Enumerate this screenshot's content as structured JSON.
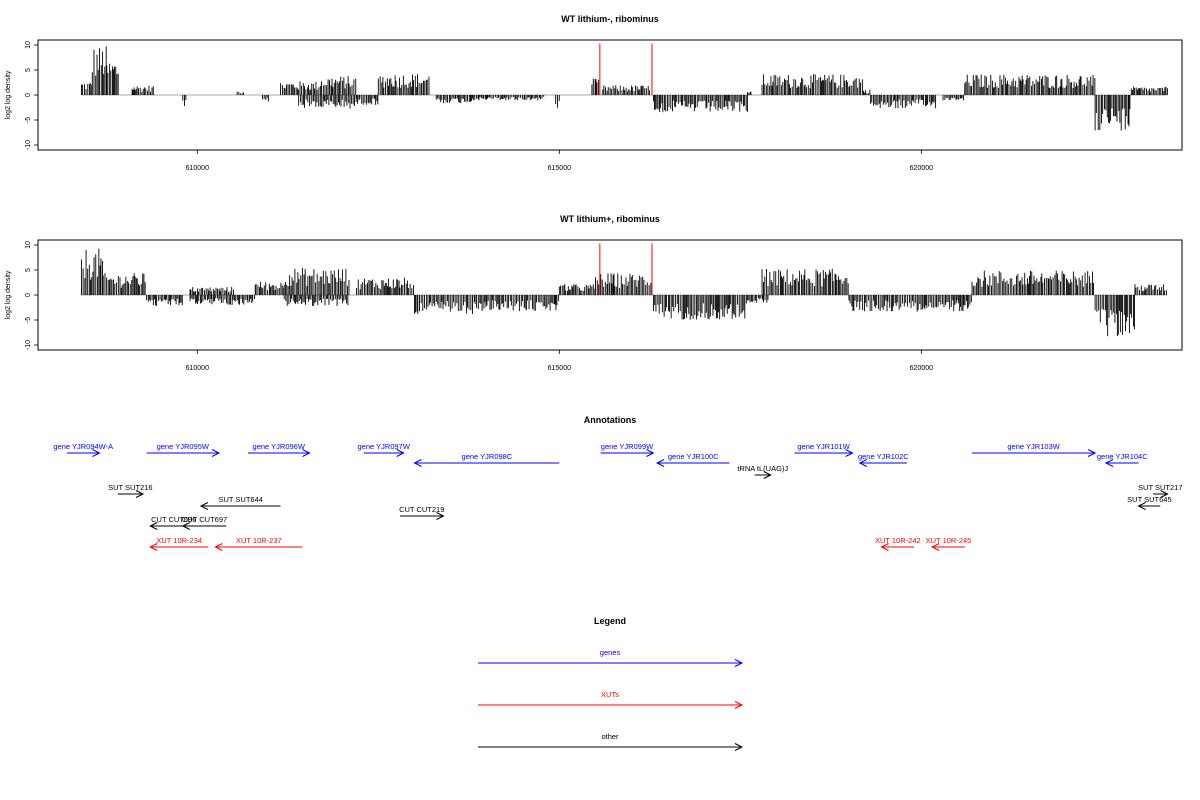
{
  "chart_data": [
    {
      "type": "bar",
      "title": "WT lithium-, ribominus",
      "ylabel": "log2 log density",
      "xlabel": "",
      "xlim": [
        607800,
        623600
      ],
      "ylim": [
        -11,
        11
      ],
      "xticks": [
        610000,
        615000,
        620000
      ],
      "yticks": [
        -10,
        -5,
        0,
        5,
        10
      ],
      "grid": false,
      "markers": [
        {
          "x": 615560,
          "value": 10.3,
          "color": "#ff0000"
        },
        {
          "x": 616280,
          "value": 10.3,
          "color": "#ff0000"
        }
      ],
      "segments": [
        {
          "x_start": 608400,
          "x_end": 608550,
          "value": 2.5
        },
        {
          "x_start": 608550,
          "x_end": 608750,
          "value": 9.0
        },
        {
          "x_start": 608750,
          "x_end": 608930,
          "value": 6.5
        },
        {
          "x_start": 609100,
          "x_end": 609400,
          "value": 1.8
        },
        {
          "x_start": 609800,
          "x_end": 609850,
          "value": -2.0
        },
        {
          "x_start": 610550,
          "x_end": 610650,
          "value": 0.8
        },
        {
          "x_start": 610900,
          "x_end": 611000,
          "value": -1.5
        },
        {
          "x_start": 611150,
          "x_end": 611700,
          "value": 2.5
        },
        {
          "x_start": 611700,
          "x_end": 612200,
          "value": 3.5
        },
        {
          "x_start": 611400,
          "x_end": 612200,
          "value": -2.5
        },
        {
          "x_start": 612200,
          "x_end": 612500,
          "value": -1.8
        },
        {
          "x_start": 612500,
          "x_end": 613200,
          "value": 4.0
        },
        {
          "x_start": 613300,
          "x_end": 613800,
          "value": -1.5
        },
        {
          "x_start": 613800,
          "x_end": 614800,
          "value": -1.0
        },
        {
          "x_start": 614950,
          "x_end": 615000,
          "value": -2.5
        },
        {
          "x_start": 615450,
          "x_end": 615550,
          "value": 3.0
        },
        {
          "x_start": 615600,
          "x_end": 616250,
          "value": 1.8
        },
        {
          "x_start": 616300,
          "x_end": 617600,
          "value": -3.2
        },
        {
          "x_start": 617600,
          "x_end": 617650,
          "value": 0.8
        },
        {
          "x_start": 617800,
          "x_end": 619200,
          "value": 3.8
        },
        {
          "x_start": 619200,
          "x_end": 619300,
          "value": 1.0
        },
        {
          "x_start": 619300,
          "x_end": 620200,
          "value": -2.5
        },
        {
          "x_start": 620300,
          "x_end": 620600,
          "value": -1.0
        },
        {
          "x_start": 620600,
          "x_end": 622400,
          "value": 3.8
        },
        {
          "x_start": 622400,
          "x_end": 622900,
          "value": -6.5
        },
        {
          "x_start": 622900,
          "x_end": 623400,
          "value": 1.5
        }
      ]
    },
    {
      "type": "bar",
      "title": "WT lithium+, ribominus",
      "ylabel": "log2 log density",
      "xlabel": "",
      "xlim": [
        607800,
        623600
      ],
      "ylim": [
        -11,
        11
      ],
      "xticks": [
        610000,
        615000,
        620000
      ],
      "yticks": [
        -10,
        -5,
        0,
        5,
        10
      ],
      "grid": false,
      "markers": [
        {
          "x": 615560,
          "value": 10.3,
          "color": "#ff0000"
        },
        {
          "x": 616280,
          "value": 10.3,
          "color": "#ff0000"
        }
      ],
      "segments": [
        {
          "x_start": 608400,
          "x_end": 608700,
          "value": 8.5
        },
        {
          "x_start": 608700,
          "x_end": 609300,
          "value": 4.0
        },
        {
          "x_start": 609300,
          "x_end": 609800,
          "value": -2.0
        },
        {
          "x_start": 609900,
          "x_end": 610500,
          "value": 1.5
        },
        {
          "x_start": 609900,
          "x_end": 610800,
          "value": -1.8
        },
        {
          "x_start": 610800,
          "x_end": 611200,
          "value": 2.5
        },
        {
          "x_start": 611200,
          "x_end": 612100,
          "value": 5.0
        },
        {
          "x_start": 611200,
          "x_end": 612100,
          "value": -2.0
        },
        {
          "x_start": 612200,
          "x_end": 613000,
          "value": 3.2
        },
        {
          "x_start": 613000,
          "x_end": 614000,
          "value": -3.5
        },
        {
          "x_start": 614000,
          "x_end": 615000,
          "value": -3.0
        },
        {
          "x_start": 615000,
          "x_end": 615500,
          "value": 2.0
        },
        {
          "x_start": 615500,
          "x_end": 616300,
          "value": 4.0
        },
        {
          "x_start": 616300,
          "x_end": 617600,
          "value": -4.5
        },
        {
          "x_start": 617600,
          "x_end": 617900,
          "value": -1.5
        },
        {
          "x_start": 617800,
          "x_end": 619000,
          "value": 4.8
        },
        {
          "x_start": 619000,
          "x_end": 620700,
          "value": -3.0
        },
        {
          "x_start": 620700,
          "x_end": 622400,
          "value": 4.5
        },
        {
          "x_start": 622400,
          "x_end": 622950,
          "value": -8.0
        },
        {
          "x_start": 622950,
          "x_end": 623400,
          "value": 2.0
        }
      ]
    }
  ],
  "annotations": {
    "title": "Annotations",
    "features": [
      {
        "label": "gene YJR094W-A",
        "row": 0,
        "start": 608200,
        "end": 608650,
        "strand": "+",
        "kind": "gene"
      },
      {
        "label": "gene YJR095W",
        "row": 0,
        "start": 609300,
        "end": 610300,
        "strand": "+",
        "kind": "gene"
      },
      {
        "label": "gene YJR096W",
        "row": 0,
        "start": 610700,
        "end": 611550,
        "strand": "+",
        "kind": "gene"
      },
      {
        "label": "gene YJR097W",
        "row": 0,
        "start": 612300,
        "end": 612850,
        "strand": "+",
        "kind": "gene"
      },
      {
        "label": "gene YJR098C",
        "row": 1,
        "start": 613000,
        "end": 615000,
        "strand": "-",
        "kind": "gene"
      },
      {
        "label": "gene YJR099W",
        "row": 0,
        "start": 615570,
        "end": 616300,
        "strand": "+",
        "kind": "gene"
      },
      {
        "label": "gene YJR100C",
        "row": 1,
        "start": 616350,
        "end": 617350,
        "strand": "-",
        "kind": "gene"
      },
      {
        "label": "gene YJR101W",
        "row": 0,
        "start": 618250,
        "end": 619050,
        "strand": "+",
        "kind": "gene"
      },
      {
        "label": "gene YJR102C",
        "row": 1,
        "start": 619150,
        "end": 619800,
        "strand": "-",
        "kind": "gene"
      },
      {
        "label": "gene YJR103W",
        "row": 0,
        "start": 620700,
        "end": 622400,
        "strand": "+",
        "kind": "gene"
      },
      {
        "label": "gene YJR104C",
        "row": 1,
        "start": 622550,
        "end": 623000,
        "strand": "-",
        "kind": "gene"
      },
      {
        "label": "tRNA tL(UAG)J",
        "row": 2,
        "start": 617700,
        "end": 617920,
        "strand": "+",
        "kind": "other"
      },
      {
        "label": "SUT SUT216",
        "row": 3,
        "start": 608900,
        "end": 609250,
        "strand": "+",
        "kind": "other"
      },
      {
        "label": "SUT SUT217",
        "row": 3,
        "start": 623200,
        "end": 623400,
        "strand": "+",
        "kind": "other"
      },
      {
        "label": "SUT SUT644",
        "row": 4,
        "start": 610050,
        "end": 611150,
        "strand": "-",
        "kind": "other"
      },
      {
        "label": "SUT SUT645",
        "row": 4,
        "start": 623000,
        "end": 623300,
        "strand": "-",
        "kind": "other"
      },
      {
        "label": "CUT CUT219",
        "row": 5,
        "start": 612800,
        "end": 613400,
        "strand": "+",
        "kind": "other"
      },
      {
        "label": "CUT CUT696",
        "row": 6,
        "start": 609350,
        "end": 610000,
        "strand": "-",
        "kind": "other"
      },
      {
        "label": "CUT CUT697",
        "row": 6,
        "start": 609800,
        "end": 610400,
        "strand": "-",
        "kind": "other"
      },
      {
        "label": "XUT 10R-234",
        "row": 7,
        "start": 609350,
        "end": 610150,
        "strand": "-",
        "kind": "xut"
      },
      {
        "label": "XUT 10R-237",
        "row": 7,
        "start": 610250,
        "end": 611450,
        "strand": "-",
        "kind": "xut"
      },
      {
        "label": "XUT 10R-242",
        "row": 7,
        "start": 619450,
        "end": 619900,
        "strand": "-",
        "kind": "xut"
      },
      {
        "label": "XUT 10R-245",
        "row": 7,
        "start": 620150,
        "end": 620600,
        "strand": "-",
        "kind": "xut"
      }
    ]
  },
  "legend": {
    "title": "Legend",
    "items": [
      {
        "label": "genes",
        "color": "#0000ff"
      },
      {
        "label": "XUTs",
        "color": "#ff0000"
      },
      {
        "label": "other",
        "color": "#000000"
      }
    ]
  },
  "colors": {
    "gene": "#0000ff",
    "xut": "#ff0000",
    "other": "#000000",
    "marker": "#ff0000",
    "bars": "#000000"
  }
}
